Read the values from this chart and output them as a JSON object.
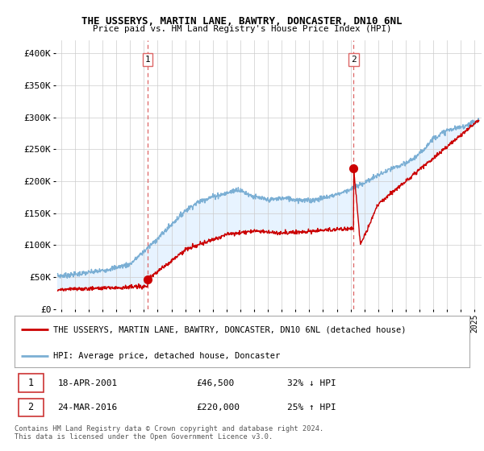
{
  "title": "THE USSERYS, MARTIN LANE, BAWTRY, DONCASTER, DN10 6NL",
  "subtitle": "Price paid vs. HM Land Registry's House Price Index (HPI)",
  "ylabel_ticks": [
    "£0",
    "£50K",
    "£100K",
    "£150K",
    "£200K",
    "£250K",
    "£300K",
    "£350K",
    "£400K"
  ],
  "ytick_values": [
    0,
    50000,
    100000,
    150000,
    200000,
    250000,
    300000,
    350000,
    400000
  ],
  "ylim": [
    0,
    420000
  ],
  "xlim_start": 1994.6,
  "xlim_end": 2025.5,
  "red_line_color": "#cc0000",
  "blue_line_color": "#7bafd4",
  "fill_color": "#ddeeff",
  "marker_color": "#cc0000",
  "vline_color": "#dd6666",
  "point1_x": 2001.29,
  "point1_y": 46500,
  "point2_x": 2016.22,
  "point2_y": 220000,
  "legend_red_label": "THE USSERYS, MARTIN LANE, BAWTRY, DONCASTER, DN10 6NL (detached house)",
  "legend_blue_label": "HPI: Average price, detached house, Doncaster",
  "background_color": "#ffffff",
  "plot_bg_color": "#ffffff",
  "grid_color": "#cccccc",
  "title_fontsize": 9,
  "subtitle_fontsize": 8
}
